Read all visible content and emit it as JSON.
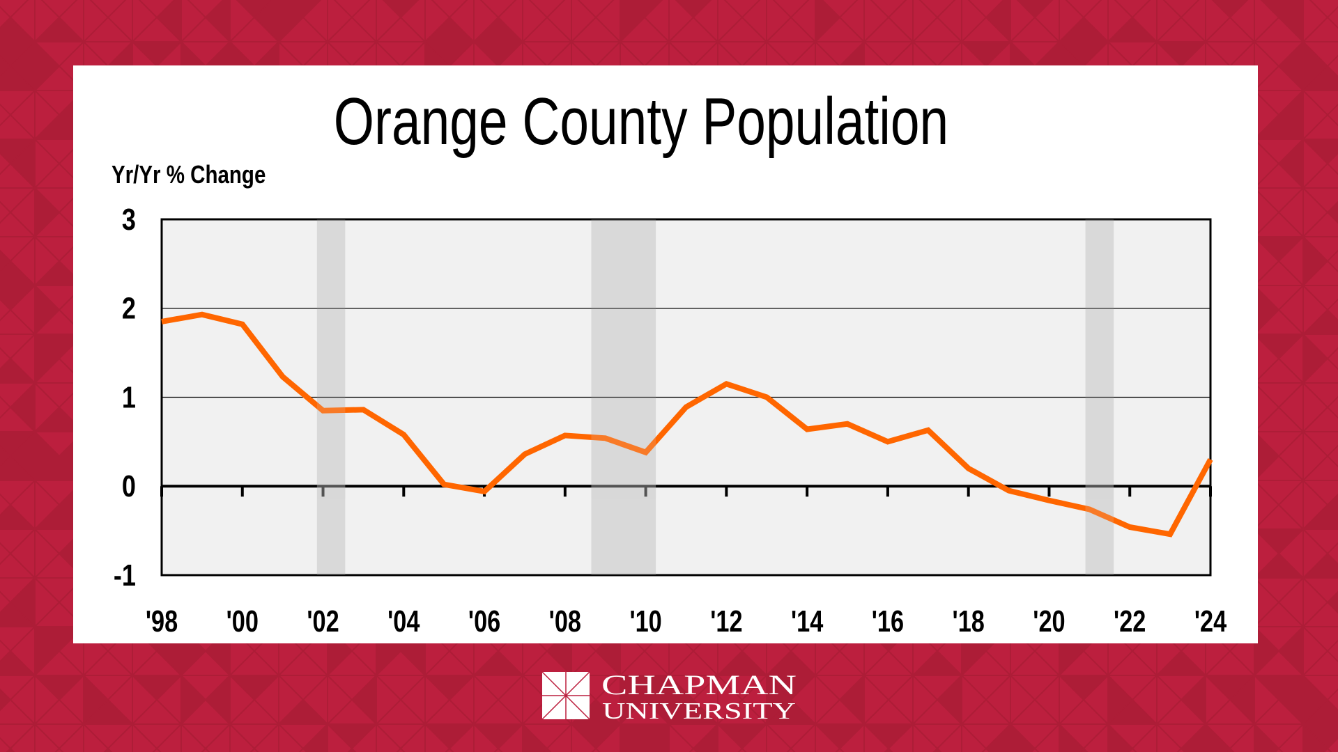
{
  "colors": {
    "background": "#BC1F3E",
    "background_dark": "#AD1D37",
    "panel": "#FFFFFF",
    "plot_bg": "#F1F1F1",
    "recession": "#D9D9D9",
    "line": "#FF6600",
    "logo": "#FFFFFF"
  },
  "logo": {
    "line1": "CHAPMAN",
    "line2": "UNIVERSITY"
  },
  "chart_data": {
    "type": "line",
    "title": "Orange County Population",
    "ylabel": "Yr/Yr % Change",
    "xlabel": "",
    "xlim": [
      1998,
      2024
    ],
    "ylim": [
      -1,
      3
    ],
    "yticks": [
      3,
      2,
      1,
      0,
      -1
    ],
    "ytick_labels": [
      "3",
      "2",
      "1",
      "0",
      "-1"
    ],
    "xticks": [
      1998,
      2000,
      2002,
      2004,
      2006,
      2008,
      2010,
      2012,
      2014,
      2016,
      2018,
      2020,
      2022,
      2024
    ],
    "xtick_labels": [
      "'98",
      "'00",
      "'02",
      "'04",
      "'06",
      "'08",
      "'10",
      "'12",
      "'14",
      "'16",
      "'18",
      "'20",
      "'22",
      "'24"
    ],
    "grid": true,
    "legend": "none",
    "recession_shading": [
      {
        "start": 2001.85,
        "end": 2002.55
      },
      {
        "start": 2008.65,
        "end": 2010.25
      },
      {
        "start": 2020.9,
        "end": 2021.6
      }
    ],
    "series": [
      {
        "name": "Orange County Population Yr/Yr % Change",
        "x": [
          1998,
          1999,
          2000,
          2001,
          2002,
          2003,
          2004,
          2005,
          2006,
          2007,
          2008,
          2009,
          2010,
          2011,
          2012,
          2013,
          2014,
          2015,
          2016,
          2017,
          2018,
          2019,
          2020,
          2021,
          2022,
          2023,
          2024
        ],
        "values": [
          1.85,
          1.93,
          1.82,
          1.23,
          0.85,
          0.86,
          0.58,
          0.02,
          -0.06,
          0.36,
          0.57,
          0.54,
          0.38,
          0.89,
          1.15,
          1.0,
          0.64,
          0.7,
          0.5,
          0.63,
          0.2,
          -0.05,
          -0.16,
          -0.26,
          -0.46,
          -0.54,
          0.3
        ]
      }
    ]
  }
}
